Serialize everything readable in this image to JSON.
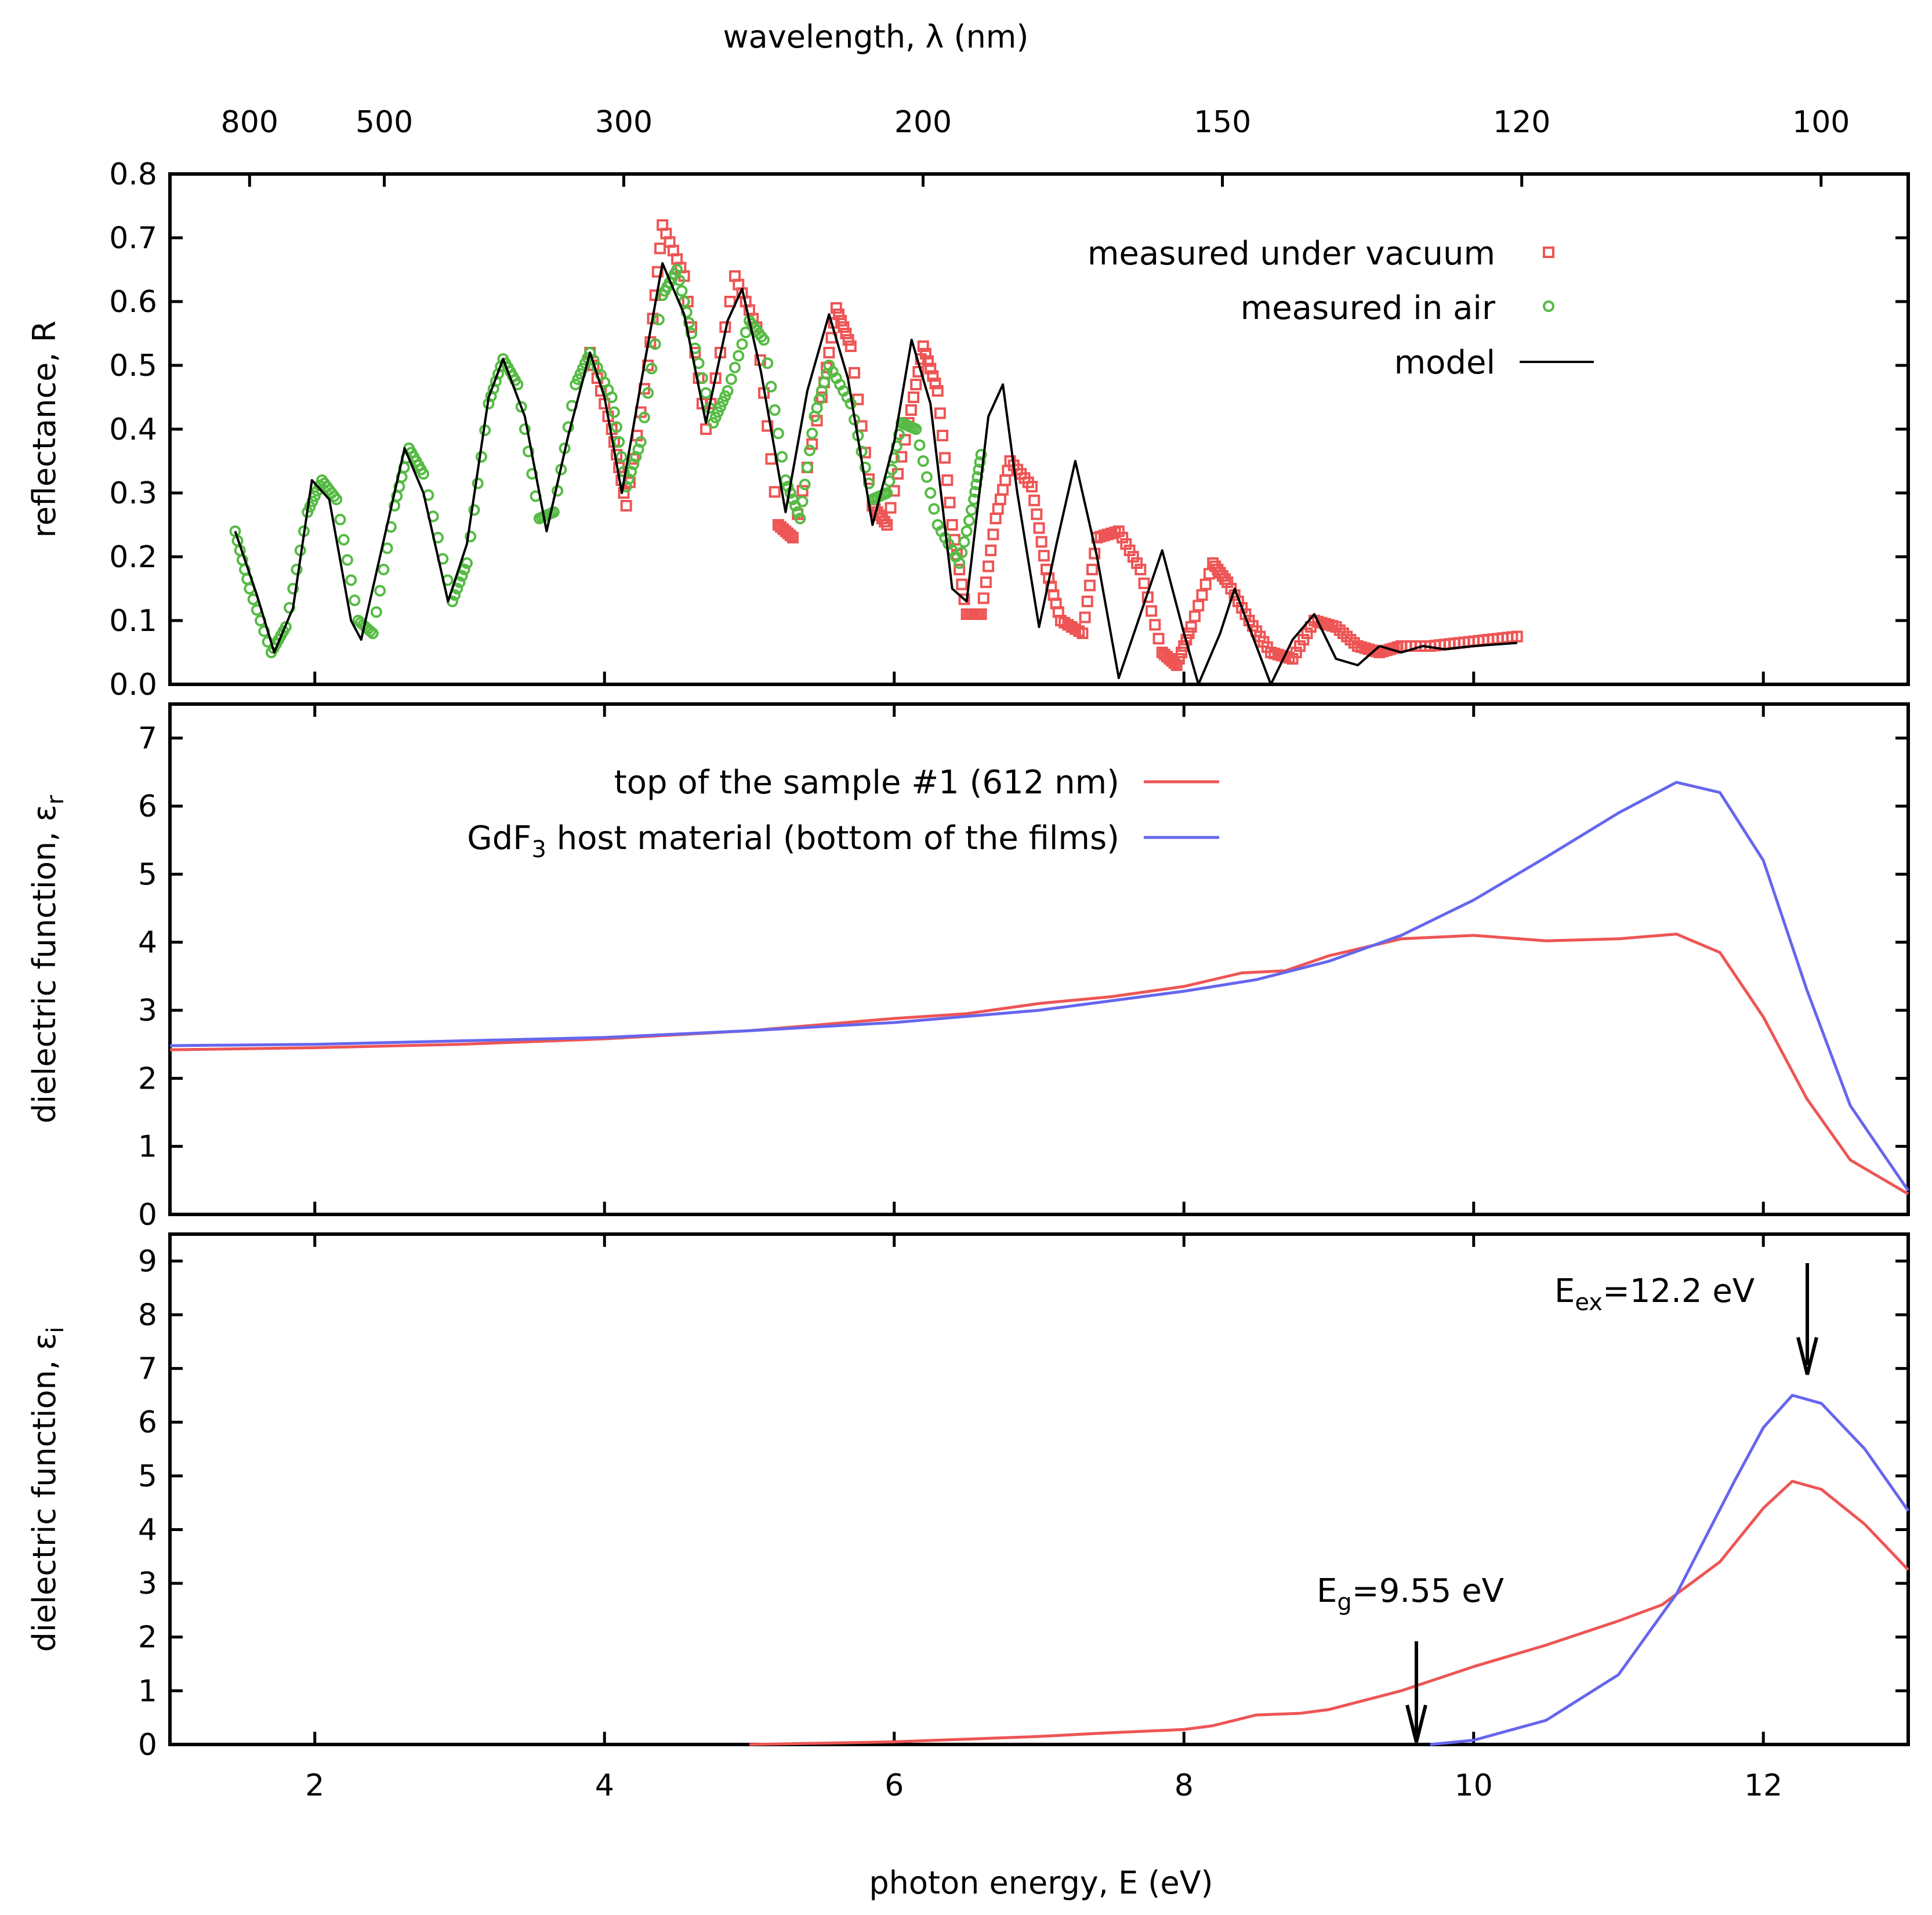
{
  "chart_data": [
    {
      "id": "reflectance",
      "type": "scatter",
      "ylabel": "reflectance, R",
      "ylim": [
        0,
        0.8
      ],
      "xlim": [
        1,
        13
      ],
      "yticks": [
        "0.0",
        "0.1",
        "0.2",
        "0.3",
        "0.4",
        "0.5",
        "0.6",
        "0.7",
        "0.8"
      ],
      "top_axis": {
        "label": "wavelength, λ (nm)",
        "ticks": [
          {
            "label": "800",
            "nm": 800
          },
          {
            "label": "500",
            "nm": 500
          },
          {
            "label": "300",
            "nm": 300
          },
          {
            "label": "200",
            "nm": 200
          },
          {
            "label": "150",
            "nm": 150
          },
          {
            "label": "120",
            "nm": 120
          },
          {
            "label": "100",
            "nm": 100
          }
        ]
      },
      "legend_position": "top-right",
      "series": [
        {
          "name": "measured under vacuum",
          "marker": "square",
          "color": "#ee5555",
          "x_range": [
            3.9,
            10.3
          ],
          "points": [
            [
              3.9,
              0.52
            ],
            [
              4.05,
              0.4
            ],
            [
              4.15,
              0.28
            ],
            [
              4.3,
              0.5
            ],
            [
              4.4,
              0.72
            ],
            [
              4.55,
              0.64
            ],
            [
              4.7,
              0.4
            ],
            [
              4.9,
              0.64
            ],
            [
              5.05,
              0.56
            ],
            [
              5.2,
              0.25
            ],
            [
              5.3,
              0.23
            ],
            [
              5.5,
              0.45
            ],
            [
              5.6,
              0.59
            ],
            [
              5.7,
              0.53
            ],
            [
              5.85,
              0.28
            ],
            [
              5.95,
              0.25
            ],
            [
              6.1,
              0.41
            ],
            [
              6.2,
              0.53
            ],
            [
              6.3,
              0.46
            ],
            [
              6.4,
              0.25
            ],
            [
              6.5,
              0.11
            ],
            [
              6.6,
              0.11
            ],
            [
              6.7,
              0.26
            ],
            [
              6.8,
              0.35
            ],
            [
              6.95,
              0.31
            ],
            [
              7.05,
              0.18
            ],
            [
              7.15,
              0.1
            ],
            [
              7.3,
              0.08
            ],
            [
              7.4,
              0.23
            ],
            [
              7.55,
              0.24
            ],
            [
              7.7,
              0.18
            ],
            [
              7.85,
              0.05
            ],
            [
              7.95,
              0.03
            ],
            [
              8.05,
              0.09
            ],
            [
              8.2,
              0.19
            ],
            [
              8.3,
              0.16
            ],
            [
              8.45,
              0.1
            ],
            [
              8.6,
              0.05
            ],
            [
              8.75,
              0.04
            ],
            [
              8.9,
              0.1
            ],
            [
              9.05,
              0.09
            ],
            [
              9.2,
              0.06
            ],
            [
              9.35,
              0.05
            ],
            [
              9.5,
              0.06
            ],
            [
              9.7,
              0.06
            ],
            [
              9.9,
              0.065
            ],
            [
              10.1,
              0.07
            ],
            [
              10.3,
              0.075
            ]
          ]
        },
        {
          "name": "measured in air",
          "marker": "circle",
          "color": "#55bb44",
          "x_range": [
            1.45,
            6.6
          ],
          "points": [
            [
              1.45,
              0.24
            ],
            [
              1.55,
              0.15
            ],
            [
              1.7,
              0.05
            ],
            [
              1.8,
              0.09
            ],
            [
              1.95,
              0.27
            ],
            [
              2.05,
              0.32
            ],
            [
              2.15,
              0.29
            ],
            [
              2.3,
              0.1
            ],
            [
              2.4,
              0.08
            ],
            [
              2.55,
              0.28
            ],
            [
              2.65,
              0.37
            ],
            [
              2.75,
              0.33
            ],
            [
              2.95,
              0.13
            ],
            [
              3.05,
              0.19
            ],
            [
              3.2,
              0.44
            ],
            [
              3.3,
              0.51
            ],
            [
              3.4,
              0.47
            ],
            [
              3.55,
              0.26
            ],
            [
              3.65,
              0.27
            ],
            [
              3.8,
              0.47
            ],
            [
              3.9,
              0.52
            ],
            [
              4.05,
              0.45
            ],
            [
              4.15,
              0.31
            ],
            [
              4.25,
              0.38
            ],
            [
              4.4,
              0.61
            ],
            [
              4.5,
              0.65
            ],
            [
              4.6,
              0.55
            ],
            [
              4.75,
              0.41
            ],
            [
              4.85,
              0.46
            ],
            [
              5.0,
              0.57
            ],
            [
              5.1,
              0.54
            ],
            [
              5.25,
              0.32
            ],
            [
              5.35,
              0.26
            ],
            [
              5.45,
              0.42
            ],
            [
              5.55,
              0.5
            ],
            [
              5.7,
              0.44
            ],
            [
              5.85,
              0.29
            ],
            [
              5.95,
              0.3
            ],
            [
              6.05,
              0.41
            ],
            [
              6.15,
              0.4
            ],
            [
              6.3,
              0.25
            ],
            [
              6.45,
              0.19
            ],
            [
              6.55,
              0.29
            ],
            [
              6.6,
              0.36
            ]
          ]
        },
        {
          "name": "model",
          "type": "line",
          "color": "#000000",
          "points": [
            [
              1.45,
              0.24
            ],
            [
              1.6,
              0.14
            ],
            [
              1.72,
              0.05
            ],
            [
              1.85,
              0.12
            ],
            [
              1.98,
              0.32
            ],
            [
              2.1,
              0.29
            ],
            [
              2.25,
              0.1
            ],
            [
              2.32,
              0.07
            ],
            [
              2.45,
              0.2
            ],
            [
              2.62,
              0.37
            ],
            [
              2.75,
              0.3
            ],
            [
              2.92,
              0.13
            ],
            [
              3.05,
              0.22
            ],
            [
              3.2,
              0.45
            ],
            [
              3.3,
              0.51
            ],
            [
              3.45,
              0.42
            ],
            [
              3.6,
              0.24
            ],
            [
              3.75,
              0.39
            ],
            [
              3.9,
              0.52
            ],
            [
              4.0,
              0.45
            ],
            [
              4.12,
              0.3
            ],
            [
              4.25,
              0.47
            ],
            [
              4.4,
              0.66
            ],
            [
              4.55,
              0.58
            ],
            [
              4.7,
              0.41
            ],
            [
              4.85,
              0.57
            ],
            [
              4.95,
              0.62
            ],
            [
              5.08,
              0.49
            ],
            [
              5.25,
              0.27
            ],
            [
              5.4,
              0.46
            ],
            [
              5.55,
              0.58
            ],
            [
              5.68,
              0.48
            ],
            [
              5.85,
              0.25
            ],
            [
              6.0,
              0.38
            ],
            [
              6.12,
              0.54
            ],
            [
              6.25,
              0.44
            ],
            [
              6.4,
              0.15
            ],
            [
              6.5,
              0.13
            ],
            [
              6.65,
              0.42
            ],
            [
              6.75,
              0.47
            ],
            [
              6.85,
              0.3
            ],
            [
              7.0,
              0.09
            ],
            [
              7.12,
              0.22
            ],
            [
              7.25,
              0.35
            ],
            [
              7.4,
              0.2
            ],
            [
              7.55,
              0.01
            ],
            [
              7.7,
              0.11
            ],
            [
              7.85,
              0.21
            ],
            [
              8.0,
              0.08
            ],
            [
              8.1,
              0.0
            ],
            [
              8.25,
              0.08
            ],
            [
              8.35,
              0.15
            ],
            [
              8.5,
              0.06
            ],
            [
              8.6,
              0.0
            ],
            [
              8.75,
              0.07
            ],
            [
              8.9,
              0.11
            ],
            [
              9.05,
              0.04
            ],
            [
              9.2,
              0.03
            ],
            [
              9.35,
              0.06
            ],
            [
              9.5,
              0.05
            ],
            [
              9.65,
              0.06
            ],
            [
              9.8,
              0.055
            ],
            [
              10.0,
              0.06
            ],
            [
              10.3,
              0.065
            ]
          ]
        }
      ]
    },
    {
      "id": "eps_r",
      "type": "line",
      "ylabel": "dielectric function, ε",
      "ylabel_sub": "r",
      "ylim": [
        0,
        7.5
      ],
      "xlim": [
        1,
        13
      ],
      "yticks": [
        "0",
        "1",
        "2",
        "3",
        "4",
        "5",
        "6",
        "7"
      ],
      "legend_position": "top-center",
      "series": [
        {
          "name": "top of the sample #1 (612 nm)",
          "color": "#ee5555",
          "points": [
            [
              1.0,
              2.42
            ],
            [
              2.0,
              2.45
            ],
            [
              3.0,
              2.5
            ],
            [
              4.0,
              2.58
            ],
            [
              5.0,
              2.7
            ],
            [
              6.0,
              2.88
            ],
            [
              6.5,
              2.95
            ],
            [
              7.0,
              3.1
            ],
            [
              7.5,
              3.2
            ],
            [
              8.0,
              3.35
            ],
            [
              8.4,
              3.55
            ],
            [
              8.7,
              3.58
            ],
            [
              9.0,
              3.8
            ],
            [
              9.5,
              4.05
            ],
            [
              10.0,
              4.1
            ],
            [
              10.5,
              4.02
            ],
            [
              11.0,
              4.05
            ],
            [
              11.4,
              4.12
            ],
            [
              11.7,
              3.85
            ],
            [
              12.0,
              2.9
            ],
            [
              12.3,
              1.7
            ],
            [
              12.6,
              0.8
            ],
            [
              13.0,
              0.3
            ]
          ]
        },
        {
          "name": "GdF3 host material (bottom of the films)",
          "name_main": "GdF",
          "name_sub": "3",
          "name_rest": " host material (bottom of the films)",
          "color": "#6666ee",
          "points": [
            [
              1.0,
              2.48
            ],
            [
              2.0,
              2.5
            ],
            [
              3.0,
              2.55
            ],
            [
              4.0,
              2.6
            ],
            [
              5.0,
              2.7
            ],
            [
              6.0,
              2.82
            ],
            [
              7.0,
              3.0
            ],
            [
              8.0,
              3.28
            ],
            [
              8.5,
              3.45
            ],
            [
              9.0,
              3.72
            ],
            [
              9.5,
              4.1
            ],
            [
              10.0,
              4.62
            ],
            [
              10.5,
              5.25
            ],
            [
              11.0,
              5.9
            ],
            [
              11.4,
              6.35
            ],
            [
              11.7,
              6.2
            ],
            [
              12.0,
              5.2
            ],
            [
              12.3,
              3.3
            ],
            [
              12.6,
              1.6
            ],
            [
              13.0,
              0.35
            ]
          ]
        }
      ]
    },
    {
      "id": "eps_i",
      "type": "line",
      "ylabel": "dielectric function, ε",
      "ylabel_sub": "i",
      "xlabel": "photon energy, E (eV)",
      "ylim": [
        0,
        9.5
      ],
      "xlim": [
        1,
        13
      ],
      "yticks": [
        "0",
        "1",
        "2",
        "3",
        "4",
        "5",
        "6",
        "7",
        "8",
        "9"
      ],
      "xticks": [
        "2",
        "4",
        "6",
        "8",
        "10",
        "12"
      ],
      "series": [
        {
          "name": "top of the sample #1 (612 nm)",
          "color": "#ee5555",
          "points": [
            [
              5.0,
              0.0
            ],
            [
              6.0,
              0.05
            ],
            [
              7.0,
              0.15
            ],
            [
              7.5,
              0.22
            ],
            [
              8.0,
              0.28
            ],
            [
              8.2,
              0.35
            ],
            [
              8.5,
              0.55
            ],
            [
              8.8,
              0.58
            ],
            [
              9.0,
              0.65
            ],
            [
              9.5,
              1.0
            ],
            [
              10.0,
              1.45
            ],
            [
              10.5,
              1.85
            ],
            [
              11.0,
              2.3
            ],
            [
              11.3,
              2.6
            ],
            [
              11.7,
              3.4
            ],
            [
              12.0,
              4.4
            ],
            [
              12.2,
              4.9
            ],
            [
              12.4,
              4.75
            ],
            [
              12.7,
              4.1
            ],
            [
              13.0,
              3.25
            ]
          ]
        },
        {
          "name": "GdF3 host material (bottom of the films)",
          "color": "#6666ee",
          "points": [
            [
              9.7,
              0.0
            ],
            [
              10.0,
              0.08
            ],
            [
              10.5,
              0.45
            ],
            [
              11.0,
              1.3
            ],
            [
              11.4,
              2.8
            ],
            [
              11.8,
              4.9
            ],
            [
              12.0,
              5.9
            ],
            [
              12.2,
              6.5
            ],
            [
              12.4,
              6.35
            ],
            [
              12.7,
              5.5
            ],
            [
              13.0,
              4.35
            ]
          ]
        }
      ],
      "annotations": [
        {
          "main": "E",
          "sub": "g",
          "rest": "=9.55 eV",
          "x": 9.55
        },
        {
          "main": "E",
          "sub": "ex",
          "rest": "=12.2 eV",
          "x": 12.2
        }
      ]
    }
  ]
}
